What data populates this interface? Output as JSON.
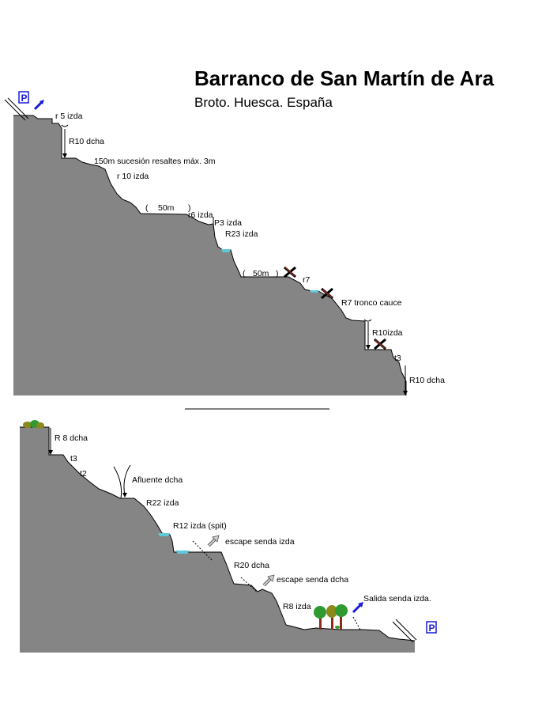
{
  "title": "Barranco de San Martín de Ara",
  "subtitle": "Broto. Huesca. España",
  "section1": {
    "labels": {
      "r5": "r 5 izda",
      "r10a": "R10 dcha",
      "resaltes": "150m sucesión resaltes máx. 3m",
      "r10izda": "r 10 izda",
      "paren_open1": "(",
      "dist1": "50m",
      "paren_close1": ")",
      "r6": "r6 izda",
      "p3": "P3 izda",
      "r23": "R23 izda",
      "paren_open2": "(",
      "dist2": "50m",
      "paren_close2": ")",
      "r7small": "r7",
      "r7tronco": "R7 tronco cauce",
      "r10izda2": "R10izda",
      "t3": "t3",
      "r10dcha2": "R10 dcha"
    }
  },
  "section2": {
    "labels": {
      "r8": "R 8 dcha",
      "t3": "t3",
      "t2": "t2",
      "afluente": "Afluente dcha",
      "r22": "R22 izda",
      "r12": "R12 izda (spit)",
      "escape1": "escape senda izda",
      "r20": "R20 dcha",
      "escape2": "escape senda dcha",
      "r8izda": "R8 izda",
      "salida": "Salida senda izda."
    }
  },
  "parking_letter": "P",
  "colors": {
    "rock": "#858585",
    "water": "#5fc8d8",
    "arrow_blue": "#1a1ad8",
    "arrow_gray": "#9a9a9a",
    "trunk": "#8b2b1a",
    "tree_green": "#2f9a2f",
    "tree_olive": "#8a8a1a"
  }
}
